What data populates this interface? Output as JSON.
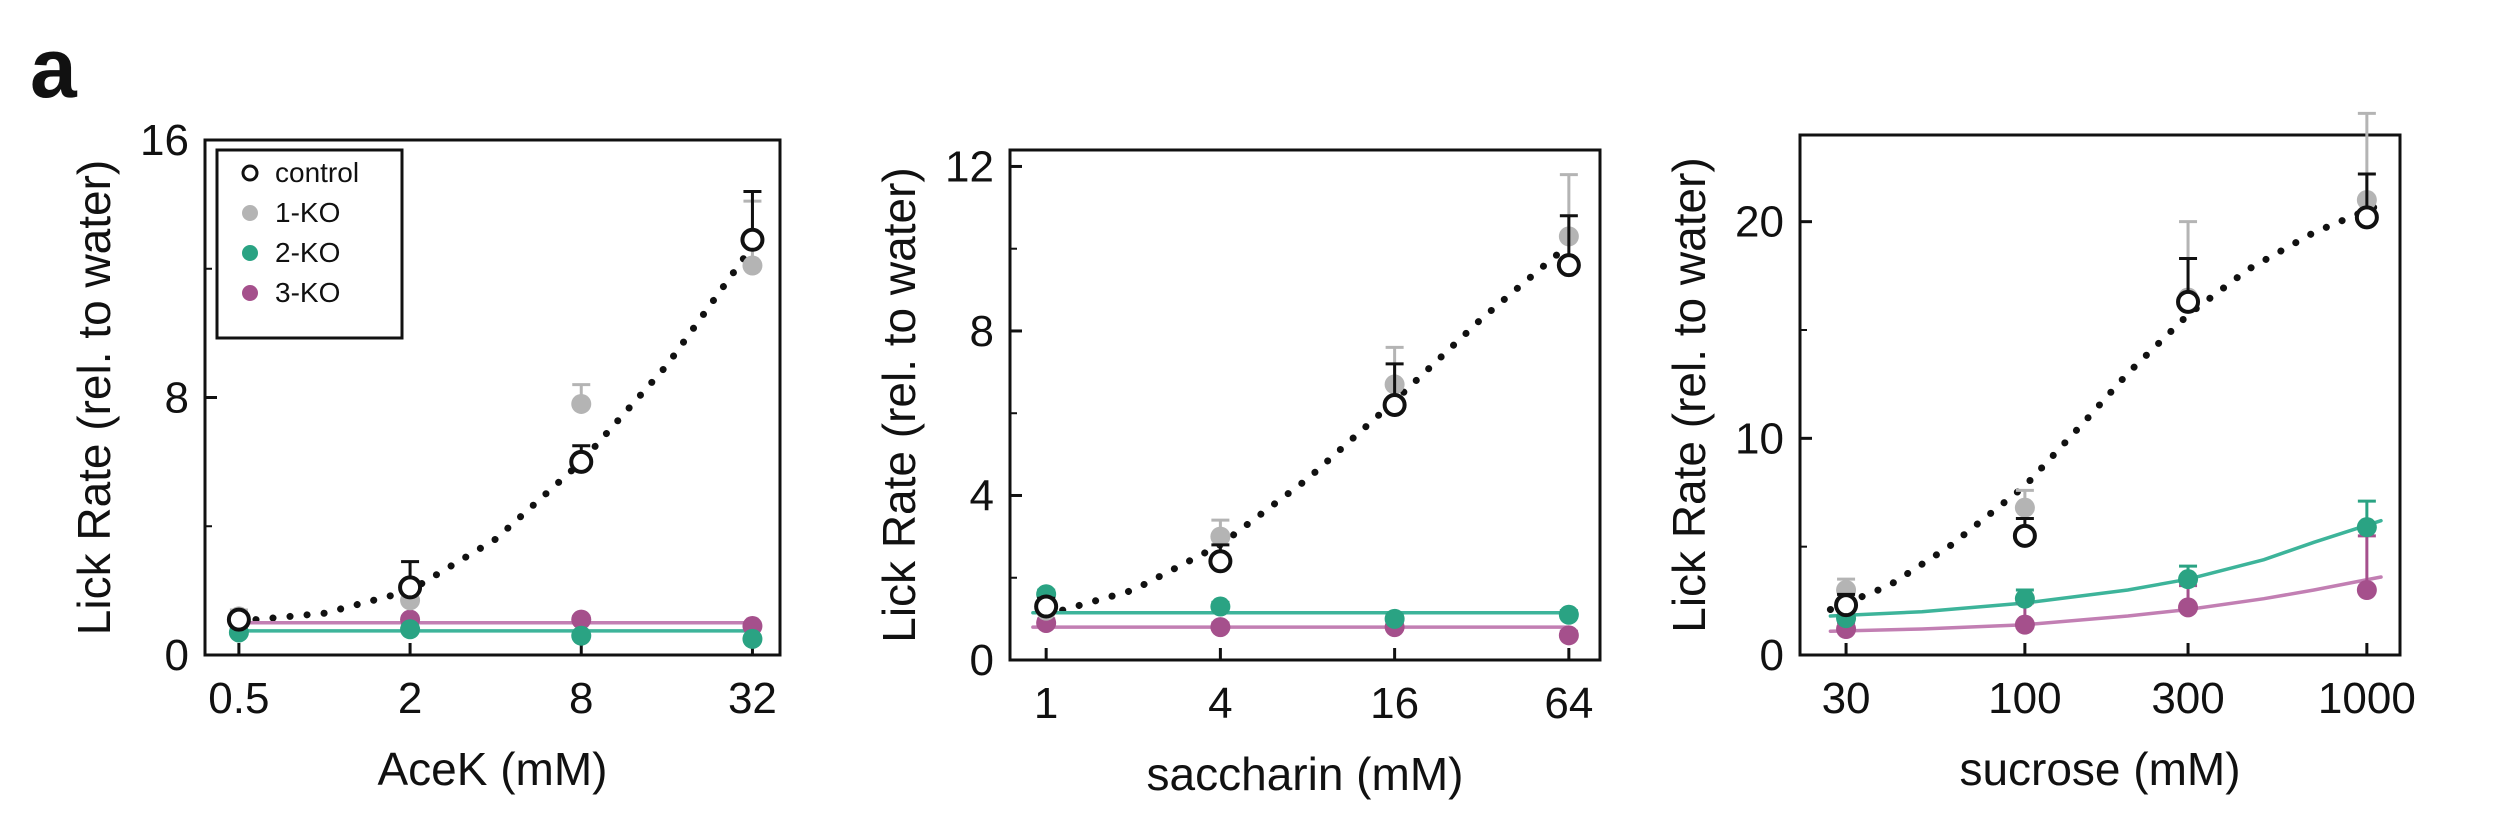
{
  "figure": {
    "panel_letter": "a"
  },
  "colors": {
    "control": "#111111",
    "1-KO": "#b4b4b4",
    "2-KO": "#2aa383",
    "3-KO": "#a5508c",
    "fit_2KO": "#3db49a",
    "fit_3KO": "#c27fb3"
  },
  "legend": [
    "control",
    "1-KO",
    "2-KO",
    "3-KO"
  ],
  "chart_data": [
    {
      "type": "scatter",
      "title": "",
      "xlabel": "AceK (mM)",
      "ylabel": "Lick Rate (rel. to water)",
      "xscale": "log",
      "xlim": [
        0.38,
        40
      ],
      "xticks": [
        0.5,
        2,
        8,
        32
      ],
      "xtick_labels": [
        "0.5",
        "2",
        "8",
        "32"
      ],
      "ylim": [
        0,
        16
      ],
      "yticks": [
        0,
        8,
        16
      ],
      "ytick_labels": [
        "0",
        "8",
        "16"
      ],
      "legend_position": "top-left",
      "grid": false,
      "x": [
        0.5,
        2,
        8,
        32
      ],
      "series": [
        {
          "name": "control",
          "marker": "open-circle",
          "values": [
            1.1,
            2.1,
            6.0,
            12.9
          ],
          "errors": [
            0.2,
            0.8,
            0.5,
            1.5
          ]
        },
        {
          "name": "1-KO",
          "marker": "filled-circle",
          "values": [
            1.2,
            1.7,
            7.8,
            12.1
          ],
          "errors": [
            0.2,
            0.5,
            0.6,
            2.0
          ]
        },
        {
          "name": "2-KO",
          "marker": "filled-circle",
          "values": [
            0.7,
            0.8,
            0.6,
            0.5
          ],
          "errors": [
            0.1,
            0.1,
            0.1,
            0.1
          ]
        },
        {
          "name": "3-KO",
          "marker": "filled-circle",
          "values": [
            1.0,
            1.1,
            1.1,
            0.9
          ],
          "errors": [
            0.1,
            0.1,
            0.1,
            0.1
          ]
        }
      ],
      "fits": [
        {
          "series": "control",
          "style": "dotted",
          "points": [
            [
              0.5,
              1.05
            ],
            [
              1,
              1.3
            ],
            [
              2,
              2.0
            ],
            [
              4,
              3.6
            ],
            [
              8,
              6.0
            ],
            [
              16,
              9.0
            ],
            [
              32,
              12.7
            ]
          ]
        },
        {
          "series": "2-KO",
          "style": "solid",
          "points": [
            [
              0.5,
              0.75
            ],
            [
              32,
              0.75
            ]
          ]
        },
        {
          "series": "3-KO",
          "style": "solid",
          "points": [
            [
              0.5,
              1.0
            ],
            [
              32,
              1.0
            ]
          ]
        }
      ]
    },
    {
      "type": "scatter",
      "title": "",
      "xlabel": "saccharin (mM)",
      "ylabel": "Lick Rate (rel. to water)",
      "xscale": "log",
      "xlim": [
        0.75,
        82
      ],
      "xticks": [
        1,
        4,
        16,
        64
      ],
      "xtick_labels": [
        "1",
        "4",
        "16",
        "64"
      ],
      "ylim": [
        0,
        12.4
      ],
      "yticks": [
        0,
        4,
        8,
        12
      ],
      "ytick_labels": [
        "0",
        "4",
        "8",
        "12"
      ],
      "grid": false,
      "x": [
        1,
        4,
        16,
        64
      ],
      "series": [
        {
          "name": "control",
          "marker": "open-circle",
          "values": [
            1.3,
            2.4,
            6.2,
            9.6
          ],
          "errors": [
            0.2,
            0.4,
            1.0,
            1.2
          ]
        },
        {
          "name": "1-KO",
          "marker": "filled-circle",
          "values": [
            1.2,
            3.0,
            6.7,
            10.3
          ],
          "errors": [
            0.2,
            0.4,
            0.9,
            1.5
          ]
        },
        {
          "name": "2-KO",
          "marker": "filled-circle",
          "values": [
            1.6,
            1.3,
            1.0,
            1.1
          ],
          "errors": [
            0.1,
            0.1,
            0.1,
            0.1
          ]
        },
        {
          "name": "3-KO",
          "marker": "filled-circle",
          "values": [
            0.9,
            0.8,
            0.8,
            0.6
          ],
          "errors": [
            0.1,
            0.1,
            0.1,
            0.1
          ]
        }
      ],
      "fits": [
        {
          "series": "control",
          "style": "dotted",
          "points": [
            [
              1,
              1.1
            ],
            [
              2,
              1.7
            ],
            [
              4,
              2.8
            ],
            [
              8,
              4.4
            ],
            [
              16,
              6.3
            ],
            [
              32,
              8.3
            ],
            [
              64,
              10.1
            ]
          ]
        },
        {
          "series": "2-KO",
          "style": "solid",
          "points": [
            [
              0.9,
              1.15
            ],
            [
              64,
              1.15
            ]
          ]
        },
        {
          "series": "3-KO",
          "style": "solid",
          "points": [
            [
              0.9,
              0.8
            ],
            [
              64,
              0.8
            ]
          ]
        }
      ]
    },
    {
      "type": "scatter",
      "title": "",
      "xlabel": "sucrose (mM)",
      "ylabel": "Lick Rate (rel. to water)",
      "xscale": "log",
      "xlim": [
        22,
        1250
      ],
      "xticks": [
        30,
        100,
        300,
        1000
      ],
      "xtick_labels": [
        "30",
        "100",
        "300",
        "1000"
      ],
      "ylim": [
        0,
        24
      ],
      "yticks": [
        0,
        10,
        20
      ],
      "ytick_labels": [
        "0",
        "10",
        "20"
      ],
      "grid": false,
      "x": [
        30,
        100,
        300,
        1000
      ],
      "series": [
        {
          "name": "control",
          "marker": "open-circle",
          "values": [
            2.3,
            5.5,
            16.3,
            20.2
          ],
          "errors": [
            0.5,
            0.8,
            2.0,
            2.0
          ]
        },
        {
          "name": "1-KO",
          "marker": "filled-circle",
          "values": [
            3.0,
            6.8,
            16.5,
            21.0
          ],
          "errors": [
            0.5,
            0.8,
            3.5,
            4.0
          ]
        },
        {
          "name": "2-KO",
          "marker": "filled-circle",
          "values": [
            1.7,
            2.6,
            3.5,
            5.9
          ],
          "errors": [
            0.3,
            0.4,
            0.6,
            1.2
          ]
        },
        {
          "name": "3-KO",
          "marker": "filled-circle",
          "values": [
            1.2,
            1.4,
            2.2,
            3.0
          ],
          "errors": [
            0.3,
            1.0,
            1.0,
            2.5
          ]
        }
      ],
      "fits": [
        {
          "series": "control",
          "style": "dotted",
          "points": [
            [
              27,
              2.1
            ],
            [
              40,
              3.2
            ],
            [
              60,
              5.0
            ],
            [
              100,
              7.8
            ],
            [
              150,
              10.8
            ],
            [
              200,
              13.0
            ],
            [
              300,
              15.7
            ],
            [
              450,
              17.8
            ],
            [
              700,
              19.5
            ],
            [
              1100,
              20.8
            ]
          ]
        },
        {
          "series": "2-KO",
          "style": "solid",
          "points": [
            [
              27,
              1.8
            ],
            [
              50,
              2.0
            ],
            [
              100,
              2.4
            ],
            [
              200,
              3.0
            ],
            [
              300,
              3.5
            ],
            [
              500,
              4.4
            ],
            [
              700,
              5.2
            ],
            [
              1100,
              6.2
            ]
          ]
        },
        {
          "series": "3-KO",
          "style": "solid",
          "points": [
            [
              27,
              1.1
            ],
            [
              50,
              1.2
            ],
            [
              100,
              1.4
            ],
            [
              200,
              1.8
            ],
            [
              300,
              2.1
            ],
            [
              500,
              2.6
            ],
            [
              700,
              3.0
            ],
            [
              1100,
              3.6
            ]
          ]
        }
      ]
    }
  ]
}
